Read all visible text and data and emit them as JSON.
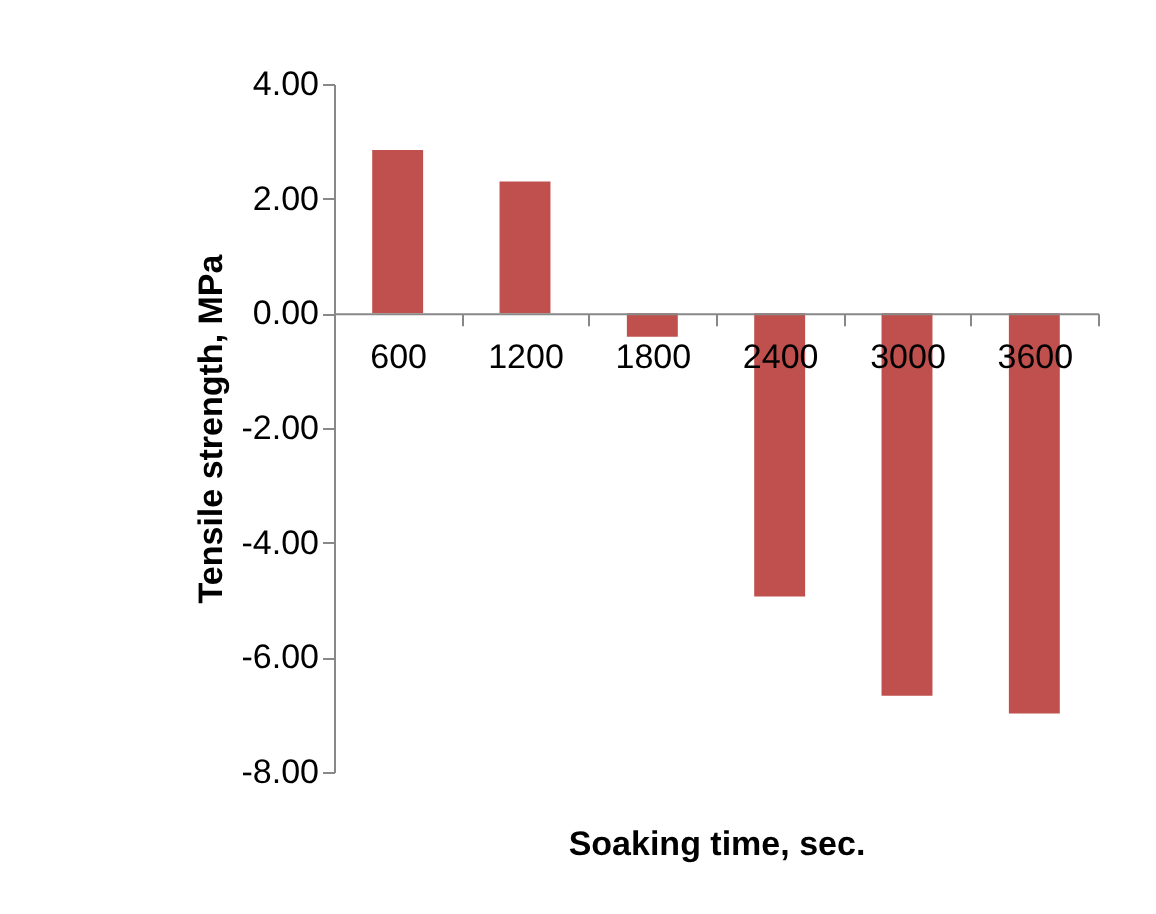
{
  "chart_data": {
    "type": "bar",
    "xlabel": "Soaking time, sec.",
    "ylabel": "Tensile strength, MPa",
    "categories": [
      "600",
      "1200",
      "1800",
      "2400",
      "3000",
      "3600"
    ],
    "values": [
      2.85,
      2.3,
      -0.41,
      -4.94,
      -6.67,
      -6.98
    ],
    "color": "#c0504d",
    "ylim": [
      -8,
      4
    ],
    "yticks": [
      {
        "value": -8,
        "label": "-8.00"
      },
      {
        "value": -6,
        "label": "-6.00"
      },
      {
        "value": -4,
        "label": "-4.00"
      },
      {
        "value": -2,
        "label": "-2.00"
      },
      {
        "value": 0,
        "label": "0.00"
      },
      {
        "value": 2,
        "label": "2.00"
      },
      {
        "value": 4,
        "label": "4.00"
      }
    ],
    "grid": false
  }
}
